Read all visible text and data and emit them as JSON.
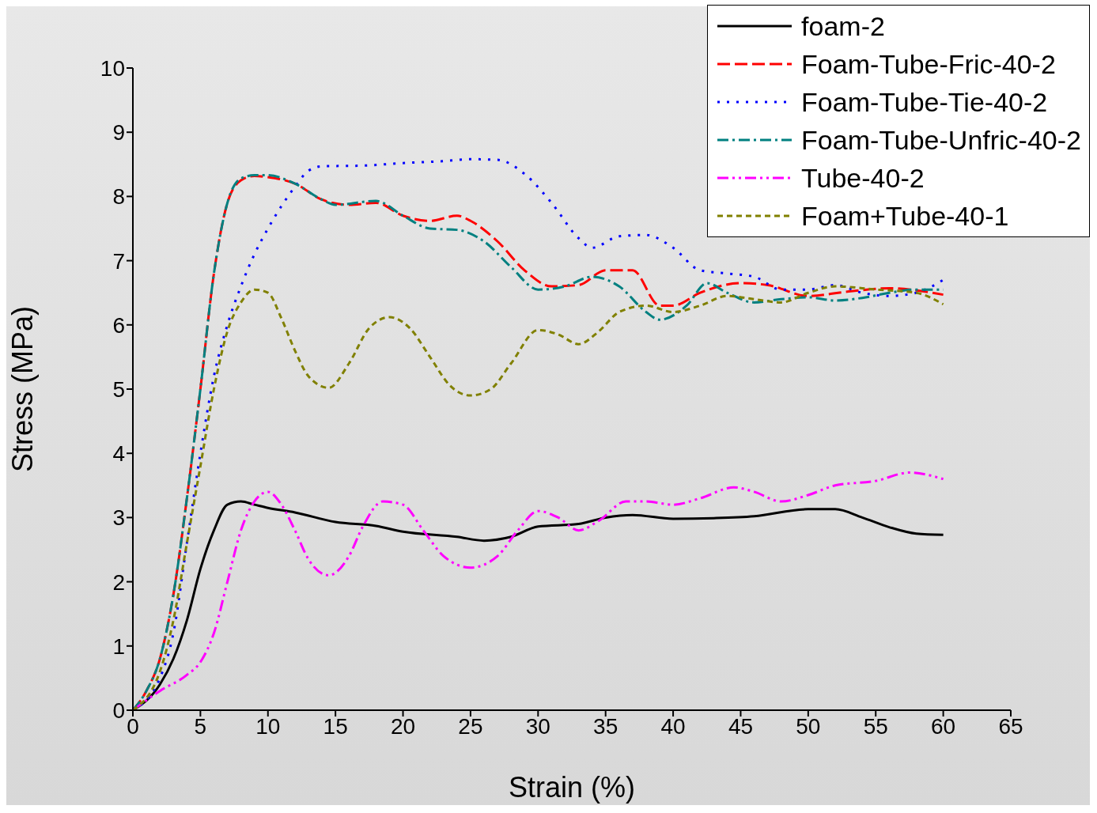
{
  "chart_data": {
    "type": "line",
    "xlabel": "Strain (%)",
    "ylabel": "Stress (MPa)",
    "xlim": [
      0,
      65
    ],
    "xticks": [
      0,
      5,
      10,
      15,
      20,
      25,
      30,
      35,
      40,
      45,
      50,
      55,
      60,
      65
    ],
    "ylim": [
      0,
      10
    ],
    "yticks": [
      0,
      1,
      2,
      3,
      4,
      5,
      6,
      7,
      8,
      9,
      10
    ],
    "grid": false,
    "legend": "top right",
    "marker": "none",
    "series": [
      {
        "name": "foam-2",
        "color": "#000000",
        "line_style": "solid",
        "x": [
          0,
          2,
          3,
          4,
          5,
          6,
          7,
          8,
          9,
          10,
          12,
          15,
          18,
          20,
          24,
          26,
          28,
          30,
          33,
          35,
          37,
          40,
          43,
          46,
          50,
          52,
          54,
          56,
          58,
          60
        ],
        "values": [
          0,
          0.4,
          0.8,
          1.4,
          2.2,
          2.8,
          3.2,
          3.25,
          3.2,
          3.15,
          3.08,
          2.93,
          2.87,
          2.78,
          2.7,
          2.64,
          2.7,
          2.86,
          2.9,
          3.0,
          3.04,
          2.98,
          2.99,
          3.02,
          3.13,
          3.13,
          3.0,
          2.85,
          2.75,
          2.73
        ]
      },
      {
        "name": "Foam-Tube-Fric-40-2",
        "color": "#ff0000",
        "line_style": "dashed",
        "x": [
          0,
          1,
          2,
          3,
          4,
          5,
          6,
          7,
          8,
          9,
          10,
          12,
          14,
          16,
          18,
          20,
          22,
          24,
          25,
          27,
          29,
          31,
          33,
          35,
          37,
          39,
          40,
          42,
          45,
          47,
          50,
          53,
          56,
          60
        ],
        "values": [
          0,
          0.3,
          0.8,
          1.8,
          3.3,
          5.0,
          6.8,
          7.9,
          8.25,
          8.32,
          8.3,
          8.2,
          7.95,
          7.87,
          7.9,
          7.7,
          7.62,
          7.7,
          7.62,
          7.3,
          6.85,
          6.6,
          6.62,
          6.85,
          6.85,
          6.3,
          6.3,
          6.5,
          6.65,
          6.62,
          6.45,
          6.52,
          6.57,
          6.47
        ]
      },
      {
        "name": "Foam-Tube-Tie-40-2",
        "color": "#0000ff",
        "line_style": "dotted",
        "x": [
          0,
          2,
          3,
          4,
          5,
          6,
          7,
          8,
          9,
          10,
          11,
          12,
          13,
          14,
          17,
          20,
          23,
          25,
          27,
          29,
          31,
          33,
          34,
          36,
          38,
          40,
          42,
          44,
          46,
          48,
          50,
          52,
          54,
          56,
          58,
          60
        ],
        "values": [
          0,
          0.5,
          1.2,
          2.6,
          4.0,
          5.2,
          6.0,
          6.6,
          7.1,
          7.5,
          7.85,
          8.15,
          8.4,
          8.47,
          8.48,
          8.52,
          8.55,
          8.58,
          8.57,
          8.35,
          7.9,
          7.35,
          7.2,
          7.38,
          7.4,
          7.2,
          6.85,
          6.8,
          6.75,
          6.55,
          6.55,
          6.62,
          6.5,
          6.45,
          6.5,
          6.7
        ]
      },
      {
        "name": "Foam-Tube-Unfric-40-2",
        "color": "#008080",
        "line_style": "dashdot",
        "x": [
          0,
          1,
          2,
          3,
          4,
          5,
          6,
          7,
          8,
          9,
          10,
          12,
          14,
          15,
          18,
          20,
          22,
          24,
          26,
          28,
          30,
          32,
          34,
          36,
          38,
          39,
          41,
          42.5,
          44,
          46,
          48,
          50,
          52,
          54,
          56,
          58,
          60
        ],
        "values": [
          0,
          0.3,
          0.8,
          1.8,
          3.3,
          5.0,
          6.8,
          7.9,
          8.28,
          8.33,
          8.33,
          8.2,
          7.95,
          7.87,
          7.93,
          7.7,
          7.5,
          7.48,
          7.3,
          6.9,
          6.55,
          6.6,
          6.75,
          6.6,
          6.2,
          6.08,
          6.3,
          6.65,
          6.5,
          6.35,
          6.4,
          6.43,
          6.38,
          6.42,
          6.5,
          6.55,
          6.55
        ]
      },
      {
        "name": "Tube-40-2",
        "color": "#ff00ff",
        "line_style": "dashdotdot",
        "x": [
          0,
          2,
          4,
          5,
          6,
          7,
          8,
          9,
          10,
          11,
          12,
          13,
          14.5,
          16,
          17,
          18.5,
          20,
          21.5,
          23,
          25,
          27,
          28.5,
          30,
          31.5,
          33,
          34.5,
          36.5,
          38,
          40,
          42,
          44.5,
          46,
          48,
          50,
          52,
          55,
          57.5,
          60
        ],
        "values": [
          0,
          0.3,
          0.55,
          0.75,
          1.2,
          2.0,
          2.8,
          3.25,
          3.4,
          3.2,
          2.8,
          2.35,
          2.1,
          2.4,
          2.85,
          3.25,
          3.2,
          2.8,
          2.4,
          2.22,
          2.4,
          2.8,
          3.1,
          3.0,
          2.8,
          2.95,
          3.25,
          3.25,
          3.2,
          3.3,
          3.47,
          3.4,
          3.25,
          3.35,
          3.5,
          3.57,
          3.7,
          3.6
        ]
      },
      {
        "name": "Foam+Tube-40-1",
        "color": "#808000",
        "line_style": "shortdash",
        "x": [
          0,
          2,
          3,
          4,
          5,
          6,
          7,
          8,
          9,
          10,
          11,
          12,
          13,
          14.5,
          16,
          17.5,
          19,
          20.5,
          22,
          23.5,
          25,
          26.5,
          28,
          30,
          31.5,
          33,
          34.5,
          36,
          38,
          40,
          42,
          44,
          46,
          48,
          50,
          52,
          55,
          58,
          60
        ],
        "values": [
          0,
          0.6,
          1.4,
          2.6,
          3.8,
          5.0,
          5.9,
          6.35,
          6.55,
          6.5,
          6.1,
          5.6,
          5.2,
          5.02,
          5.4,
          5.95,
          6.12,
          5.95,
          5.5,
          5.05,
          4.9,
          5.0,
          5.4,
          5.92,
          5.85,
          5.7,
          5.9,
          6.2,
          6.3,
          6.2,
          6.3,
          6.45,
          6.4,
          6.35,
          6.5,
          6.6,
          6.55,
          6.5,
          6.32
        ]
      }
    ]
  }
}
